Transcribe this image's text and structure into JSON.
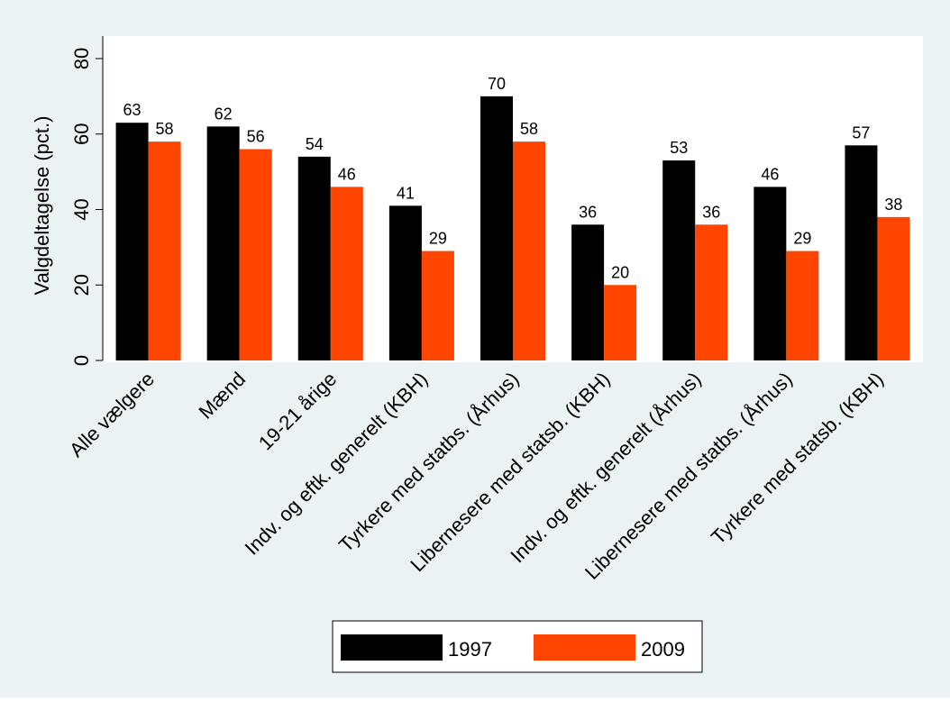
{
  "chart_data": {
    "type": "bar",
    "title": "",
    "xlabel": "",
    "ylabel": "Valgdeltagelse (pct.)",
    "ylim": [
      0,
      85
    ],
    "yticks": [
      0,
      20,
      40,
      60,
      80
    ],
    "grid": false,
    "legend_position": "bottom",
    "categories": [
      "Alle vælgere",
      "Mænd",
      "19-21 årige",
      "Indv. og eftk. generelt (KBH)",
      "Tyrkere med statbs. (Århus)",
      "Libernesere med statsb. (KBH)",
      "Indv. og eftk. generelt (Århus)",
      "Libernesere med statbs. (Århus)",
      "Tyrkere med statsb. (KBH)"
    ],
    "series": [
      {
        "name": "1997",
        "color": "#000000",
        "values": [
          63,
          62,
          54,
          41,
          70,
          36,
          53,
          46,
          57
        ]
      },
      {
        "name": "2009",
        "color": "#ff4500",
        "values": [
          58,
          56,
          46,
          29,
          58,
          20,
          36,
          29,
          38
        ]
      }
    ],
    "colors": {
      "background": "#eaf2f3",
      "plot_background": "#ffffff"
    }
  }
}
